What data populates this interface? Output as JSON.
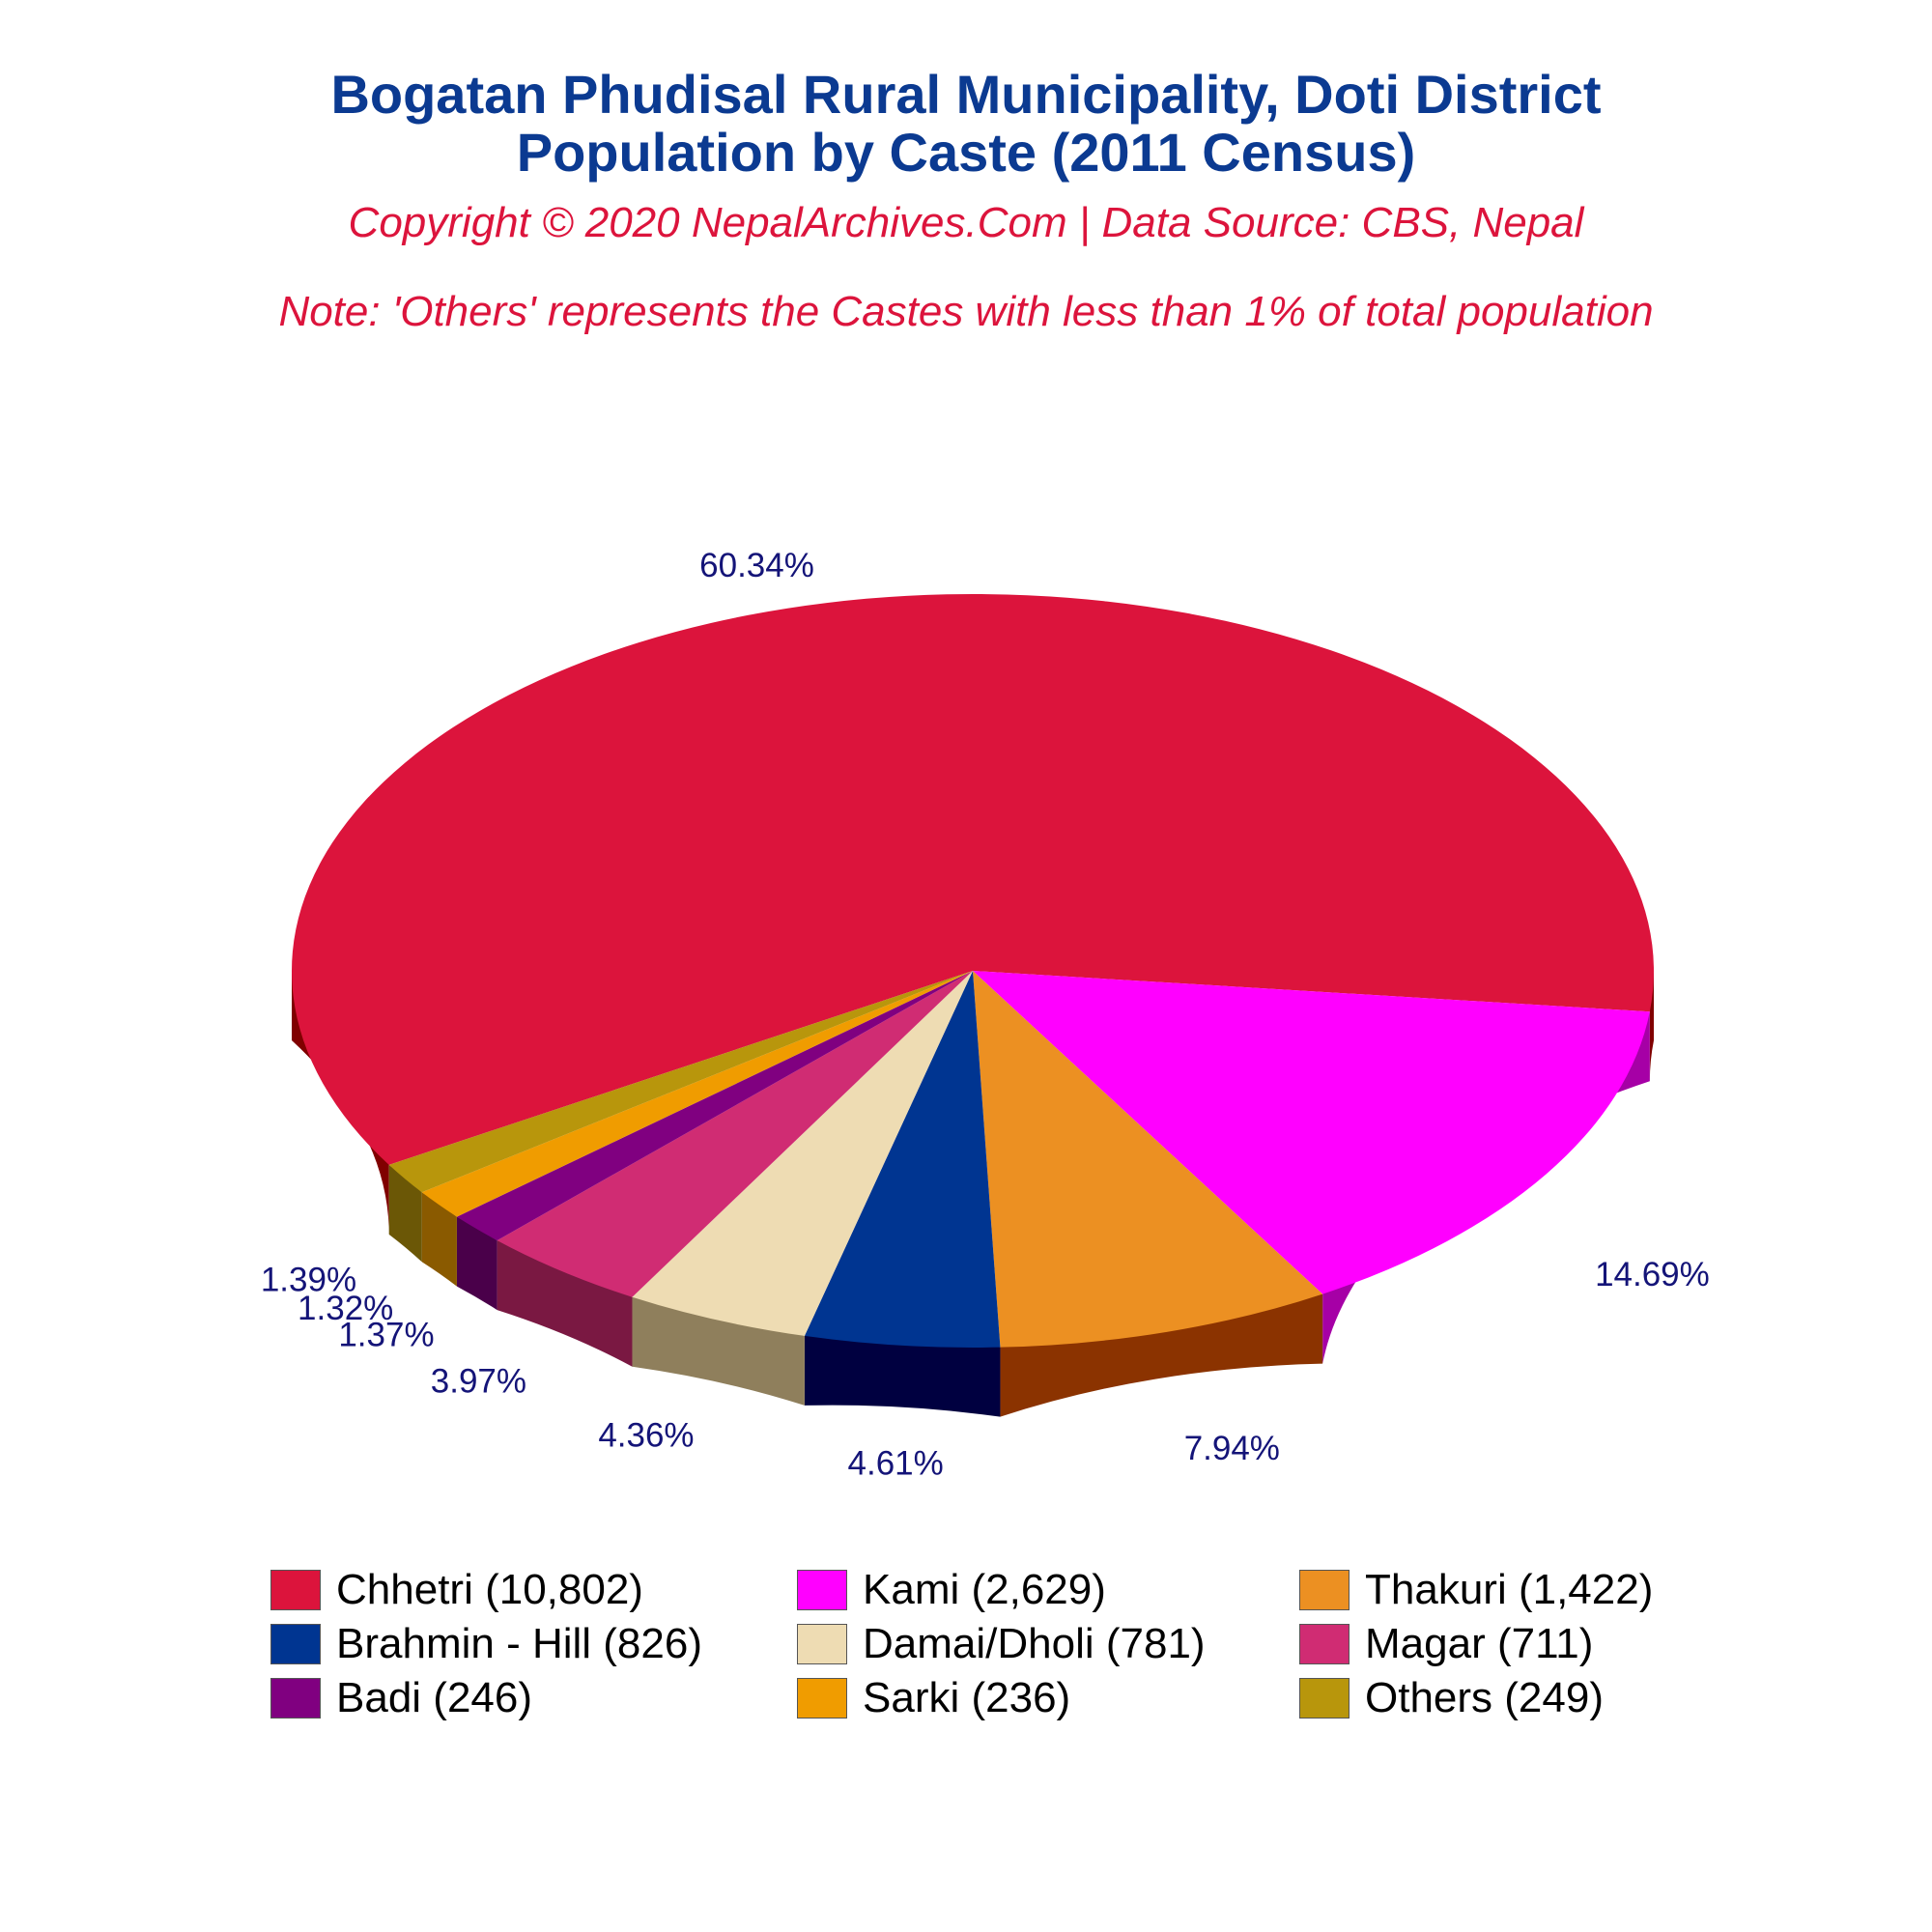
{
  "title": "Bogatan Phudisal Rural Municipality, Doti District",
  "subtitle": "Population by Caste (2011 Census)",
  "copyright": "Copyright © 2020 NepalArchives.Com | Data Source: CBS, Nepal",
  "note": "Note: 'Others' represents the Castes with less than 1% of total population",
  "chart_data": {
    "type": "pie",
    "style": "3d",
    "title": "Bogatan Phudisal Rural Municipality, Doti District",
    "subtitle": "Population by Caste (2011 Census)",
    "legend_position": "bottom",
    "slices": [
      {
        "label": "Chhetri (10,802)",
        "category": "Chhetri",
        "value": 10802,
        "percent_label": "60.34%",
        "color": "#dc143c",
        "side_color": "#800000"
      },
      {
        "label": "Kami (2,629)",
        "category": "Kami",
        "value": 2629,
        "percent_label": "14.69%",
        "color": "#ff00ff",
        "side_color": "#a600a6"
      },
      {
        "label": "Thakuri (1,422)",
        "category": "Thakuri",
        "value": 1422,
        "percent_label": "7.94%",
        "color": "#ec9022",
        "side_color": "#8b3300"
      },
      {
        "label": "Brahmin - Hill (826)",
        "category": "Brahmin - Hill",
        "value": 826,
        "percent_label": "4.61%",
        "color": "#003591",
        "side_color": "#000040"
      },
      {
        "label": "Damai/Dholi (781)",
        "category": "Damai/Dholi",
        "value": 781,
        "percent_label": "4.36%",
        "color": "#eedcb3",
        "side_color": "#8f7f5c"
      },
      {
        "label": "Magar (711)",
        "category": "Magar",
        "value": 711,
        "percent_label": "3.97%",
        "color": "#d02c73",
        "side_color": "#7a1842"
      },
      {
        "label": "Badi (246)",
        "category": "Badi",
        "value": 246,
        "percent_label": "1.37%",
        "color": "#800080",
        "side_color": "#4a004a"
      },
      {
        "label": "Sarki (236)",
        "category": "Sarki",
        "value": 236,
        "percent_label": "1.32%",
        "color": "#f09c00",
        "side_color": "#8a5a00"
      },
      {
        "label": "Others (249)",
        "category": "Others",
        "value": 249,
        "percent_label": "1.39%",
        "color": "#b8960c",
        "side_color": "#6b5706"
      }
    ]
  }
}
